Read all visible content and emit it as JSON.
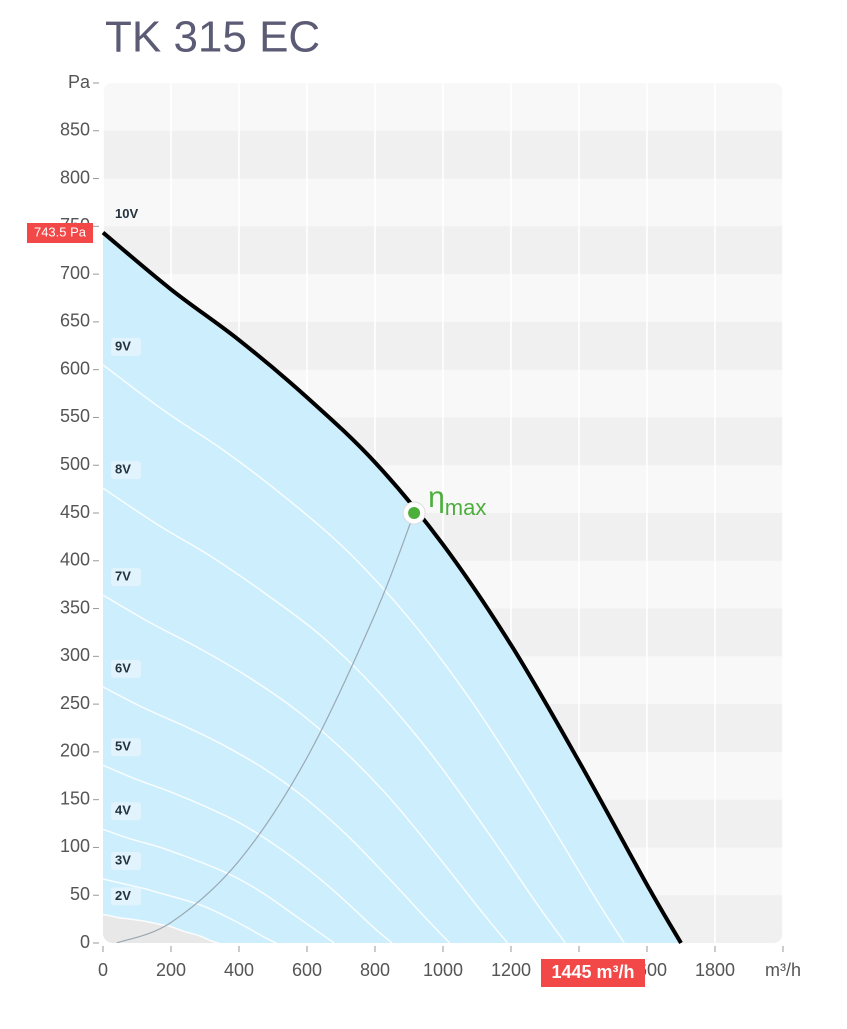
{
  "chart_data": {
    "type": "line",
    "title": "TK 315 EC",
    "xlim": [
      0,
      2000
    ],
    "ylim": [
      0,
      900
    ],
    "xticks": [
      0,
      200,
      400,
      600,
      800,
      1000,
      1200,
      1400,
      1600,
      1800,
      {
        "value": 2000,
        "label": "m³/h"
      }
    ],
    "yticks": [
      0,
      50,
      100,
      150,
      200,
      250,
      300,
      350,
      400,
      450,
      500,
      550,
      600,
      650,
      700,
      750,
      800,
      850,
      {
        "value": 900,
        "label": "Pa"
      }
    ],
    "grid": true,
    "area_color": "#cdeefc",
    "low_area_color": "#e8e8e8",
    "series": [
      {
        "name": "10V",
        "color": "#000000",
        "x": [
          0,
          200,
          400,
          600,
          800,
          1000,
          1200,
          1400,
          1600,
          1700
        ],
        "values": [
          743.5,
          684,
          631,
          571,
          503,
          417,
          312,
          190,
          61,
          0
        ]
      },
      {
        "name": "9V",
        "color": "#ffffff",
        "x": [
          0,
          180,
          361,
          541,
          722,
          902,
          1082,
          1263,
          1443,
          1533
        ],
        "values": [
          605,
          557,
          514,
          465,
          409,
          339,
          254,
          155,
          50,
          0
        ]
      },
      {
        "name": "8V",
        "color": "#ffffff",
        "x": [
          0,
          160,
          320,
          480,
          640,
          800,
          960,
          1120,
          1280,
          1360
        ],
        "values": [
          476,
          438,
          404,
          365,
          322,
          267,
          200,
          122,
          39,
          0
        ]
      },
      {
        "name": "7V",
        "color": "#ffffff",
        "x": [
          0,
          140,
          280,
          420,
          560,
          700,
          840,
          980,
          1120,
          1190
        ],
        "values": [
          364,
          335,
          309,
          280,
          246,
          204,
          153,
          93,
          30,
          0
        ]
      },
      {
        "name": "6V",
        "color": "#ffffff",
        "x": [
          0,
          120,
          240,
          360,
          480,
          600,
          720,
          840,
          960,
          1020
        ],
        "values": [
          268,
          246,
          227,
          206,
          181,
          150,
          112,
          68,
          22,
          0
        ]
      },
      {
        "name": "5V",
        "color": "#ffffff",
        "x": [
          0,
          100,
          200,
          300,
          400,
          500,
          600,
          700,
          800,
          850
        ],
        "values": [
          186,
          171,
          158,
          143,
          126,
          104,
          78,
          48,
          15,
          0
        ]
      },
      {
        "name": "4V",
        "color": "#ffffff",
        "x": [
          0,
          80,
          160,
          240,
          320,
          400,
          480,
          560,
          640,
          680
        ],
        "values": [
          119,
          109,
          101,
          91,
          80,
          67,
          50,
          30,
          10,
          0
        ]
      },
      {
        "name": "3V",
        "color": "#ffffff",
        "x": [
          0,
          60,
          120,
          180,
          240,
          300,
          360,
          420,
          480,
          510
        ],
        "values": [
          67,
          62,
          57,
          51,
          45,
          38,
          28,
          17,
          5,
          0
        ]
      },
      {
        "name": "2V",
        "color": "#ffffff",
        "x": [
          0,
          40,
          80,
          120,
          160,
          200,
          240,
          280,
          320,
          340
        ],
        "values": [
          30,
          27,
          25,
          23,
          20,
          17,
          12,
          8,
          2,
          0
        ]
      }
    ],
    "efficiency_curve": {
      "color": "#9aa8b4",
      "x": [
        40,
        200,
        400,
        600,
        800,
        915
      ],
      "values": [
        0,
        21.5,
        86,
        194,
        344,
        450
      ]
    },
    "eta_max": {
      "x": 915,
      "y": 450,
      "label": "η",
      "subscript": "max",
      "color": "#4caf3c"
    },
    "pressure_label": "743.5 Pa",
    "flow_label": "1445 m³/h"
  }
}
